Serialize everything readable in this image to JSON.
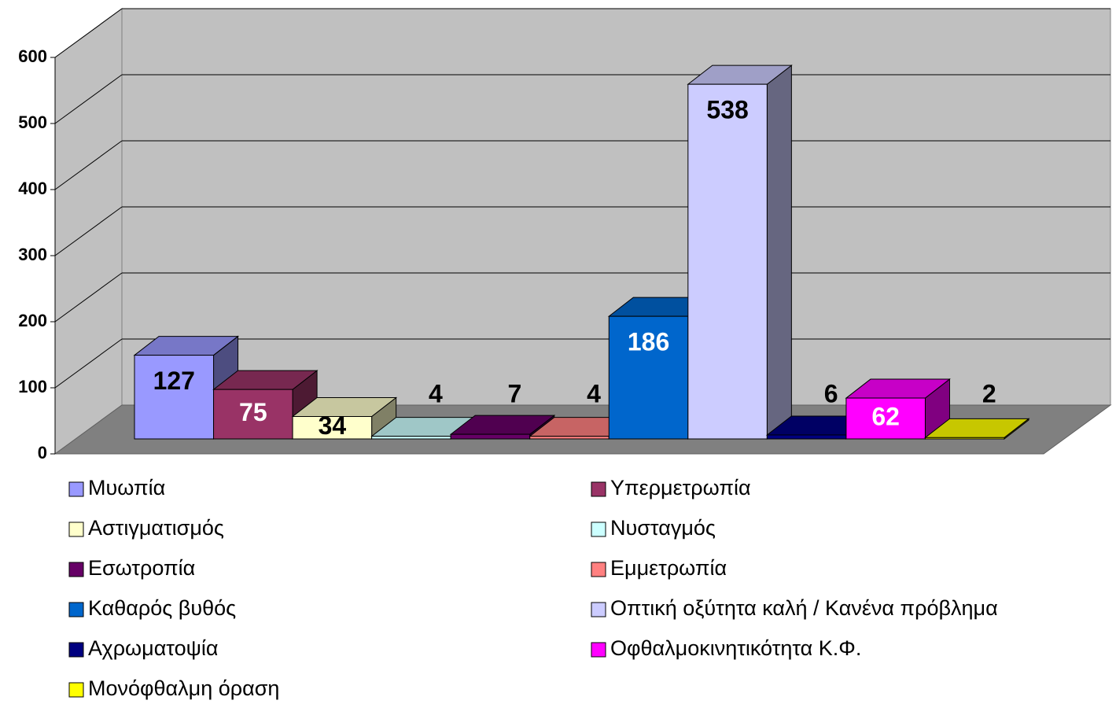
{
  "chart_data": {
    "type": "bar",
    "series": [
      {
        "name": "Μυωπία",
        "color": "#9999ff",
        "values": [
          127
        ]
      },
      {
        "name": "Υπερμετρωπία",
        "color": "#993366",
        "values": [
          75
        ]
      },
      {
        "name": "Αστιγματισμός",
        "color": "#ffffcc",
        "values": [
          34
        ]
      },
      {
        "name": "Νυσταγμός",
        "color": "#ccffff",
        "values": [
          4
        ]
      },
      {
        "name": "Εσωτροπία",
        "color": "#660066",
        "values": [
          7
        ]
      },
      {
        "name": "Εμμετρωπία",
        "color": "#ff8080",
        "values": [
          4
        ]
      },
      {
        "name": "Καθαρός βυθός",
        "color": "#0066cc",
        "values": [
          186
        ]
      },
      {
        "name": "Οπτική οξύτητα καλή / Κανένα πρόβλημα",
        "color": "#ccccff",
        "values": [
          538
        ]
      },
      {
        "name": "Αχρωματοψία",
        "color": "#000080",
        "values": [
          6
        ]
      },
      {
        "name": "Οφθαλμοκινητικότητα Κ.Φ.",
        "color": "#ff00ff",
        "values": [
          62
        ]
      },
      {
        "name": "Μονόφθαλμη όραση",
        "color": "#ffff00",
        "values": [
          2
        ]
      }
    ],
    "ylim": [
      0,
      600
    ],
    "yticks": [
      0,
      100,
      200,
      300,
      400,
      500,
      600
    ],
    "grid": true,
    "legend": "bottom"
  }
}
